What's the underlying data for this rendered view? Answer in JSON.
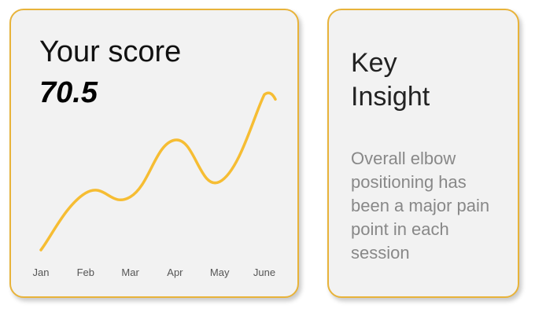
{
  "score_card": {
    "title": "Your score",
    "value": "70.5"
  },
  "chart_data": {
    "type": "line",
    "categories": [
      "Jan",
      "Feb",
      "Mar",
      "Apr",
      "May",
      "June"
    ],
    "series": [
      {
        "values": [
          0,
          30,
          28,
          58,
          36,
          82
        ]
      }
    ],
    "ylim": [
      0,
      90
    ],
    "grid": false,
    "line_color": "#f6bd33"
  },
  "insight_card": {
    "title_line1": "Key",
    "title_line2": "Insight",
    "body": "Overall elbow positioning has been a major pain point in each session"
  },
  "colors": {
    "accent": "#e8b33a",
    "card_bg": "#f2f2f2",
    "line": "#f6bd33"
  }
}
